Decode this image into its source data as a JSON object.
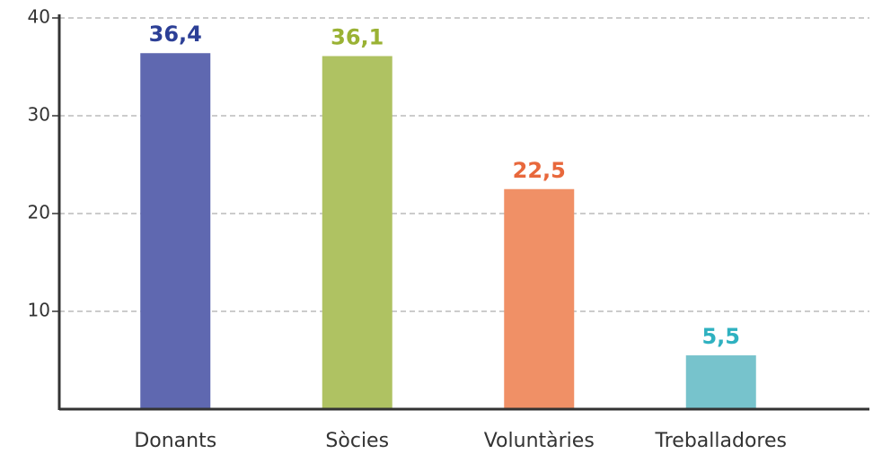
{
  "chart_data": {
    "type": "bar",
    "categories": [
      "Donants",
      "Sòcies",
      "Voluntàries",
      "Treballadores"
    ],
    "values": [
      36.4,
      36.1,
      22.5,
      5.5
    ],
    "value_labels": [
      "36,4",
      "36,1",
      "22,5",
      "5,5"
    ],
    "colors": [
      "#5f68b0",
      "#afc262",
      "#f09066",
      "#77c3cc"
    ],
    "label_colors": [
      "#2c3f96",
      "#9ab234",
      "#e8683c",
      "#2fb1c0"
    ],
    "ylim": [
      0,
      40
    ],
    "yticks": [
      10,
      20,
      30,
      40
    ],
    "grid": true
  }
}
